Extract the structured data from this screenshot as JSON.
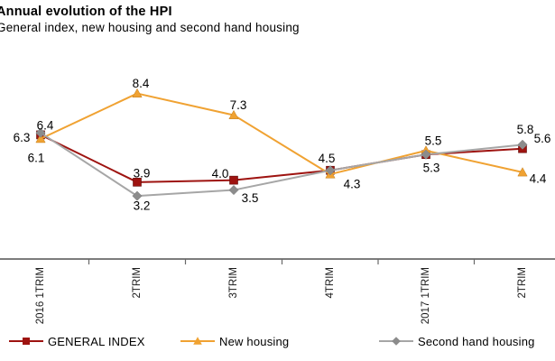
{
  "header": {
    "title": "Annual evolution of the HPI",
    "subtitle": "General index, new housing and second hand housing"
  },
  "chart_data": {
    "type": "line",
    "categories": [
      "2016 1TRIM",
      "2TRIM",
      "3TRIM",
      "4TRIM",
      "2017 1TRIM",
      "2TRIM"
    ],
    "series": [
      {
        "name": "GENERAL INDEX",
        "marker": "square",
        "line_color": "#9E1310",
        "marker_color": "#9E1310",
        "values": [
          6.3,
          3.9,
          4.0,
          4.5,
          5.3,
          5.6
        ],
        "point_labels": [
          "6.3",
          "3.9",
          "4.0",
          "4.5",
          "5.3",
          "5.6"
        ]
      },
      {
        "name": "New housing",
        "marker": "triangle",
        "line_color": "#F0A232",
        "marker_color": "#F0A232",
        "values": [
          6.1,
          8.4,
          7.3,
          4.3,
          5.5,
          4.4
        ],
        "point_labels": [
          "6.1",
          "8.4",
          "7.3",
          "4.3",
          "5.5",
          "4.4"
        ]
      },
      {
        "name": "Second hand housing",
        "marker": "diamond",
        "line_color": "#A6A6A6",
        "marker_color": "#8C8C8C",
        "values": [
          6.4,
          3.2,
          3.5,
          4.5,
          5.3,
          5.8
        ],
        "point_labels": [
          "6.4",
          "3.2",
          "3.5",
          "",
          "",
          "5.8"
        ]
      }
    ],
    "title": "Annual evolution of the HPI",
    "subtitle": "General index, new housing and second hand housing",
    "xlabel": "",
    "ylabel": "",
    "ylim": [
      0,
      10
    ],
    "grid": false,
    "y_axis_visible": false,
    "x_tick_label_rotation": 90,
    "legend_position": "bottom",
    "axis_color": "#696969",
    "label_color": "#000000"
  }
}
